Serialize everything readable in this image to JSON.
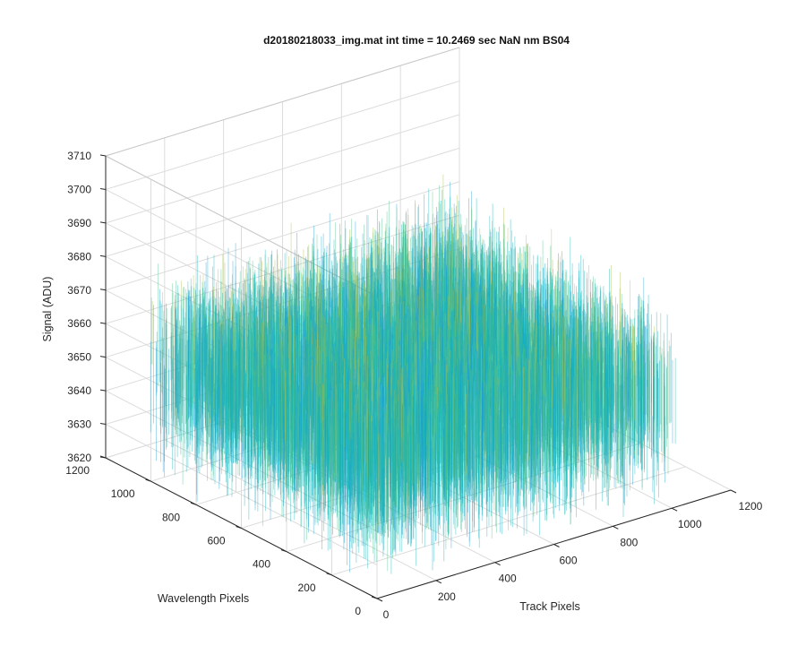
{
  "chart_data": {
    "type": "surface",
    "title": "d20180218033_img.mat int time = 10.2469 sec  NaN nm BS04",
    "xlabel": "Track Pixels",
    "ylabel": "Wavelength Pixels",
    "zlabel": "Signal (ADU)",
    "xlim": [
      0,
      1200
    ],
    "ylim": [
      0,
      1200
    ],
    "zlim": [
      3620,
      3710
    ],
    "xticks": [
      "0",
      "200",
      "400",
      "600",
      "800",
      "1000",
      "1200"
    ],
    "yticks": [
      "0",
      "200",
      "400",
      "600",
      "800",
      "1000",
      "1200"
    ],
    "zticks": [
      "3620",
      "3630",
      "3640",
      "3650",
      "3660",
      "3670",
      "3680",
      "3690",
      "3700",
      "3710"
    ],
    "data_extent": {
      "x": [
        1,
        1024
      ],
      "y": [
        1,
        1024
      ]
    },
    "signal_mean": 3655,
    "signal_typical_range": [
      3630,
      3700
    ],
    "colormap": "parula",
    "colormap_colors": [
      "#3e26a8",
      "#1c9fd3",
      "#12b4b9",
      "#4dc18a",
      "#a8c04a",
      "#ecba3b",
      "#f9fb0e"
    ],
    "grid": true,
    "view": "3d"
  }
}
